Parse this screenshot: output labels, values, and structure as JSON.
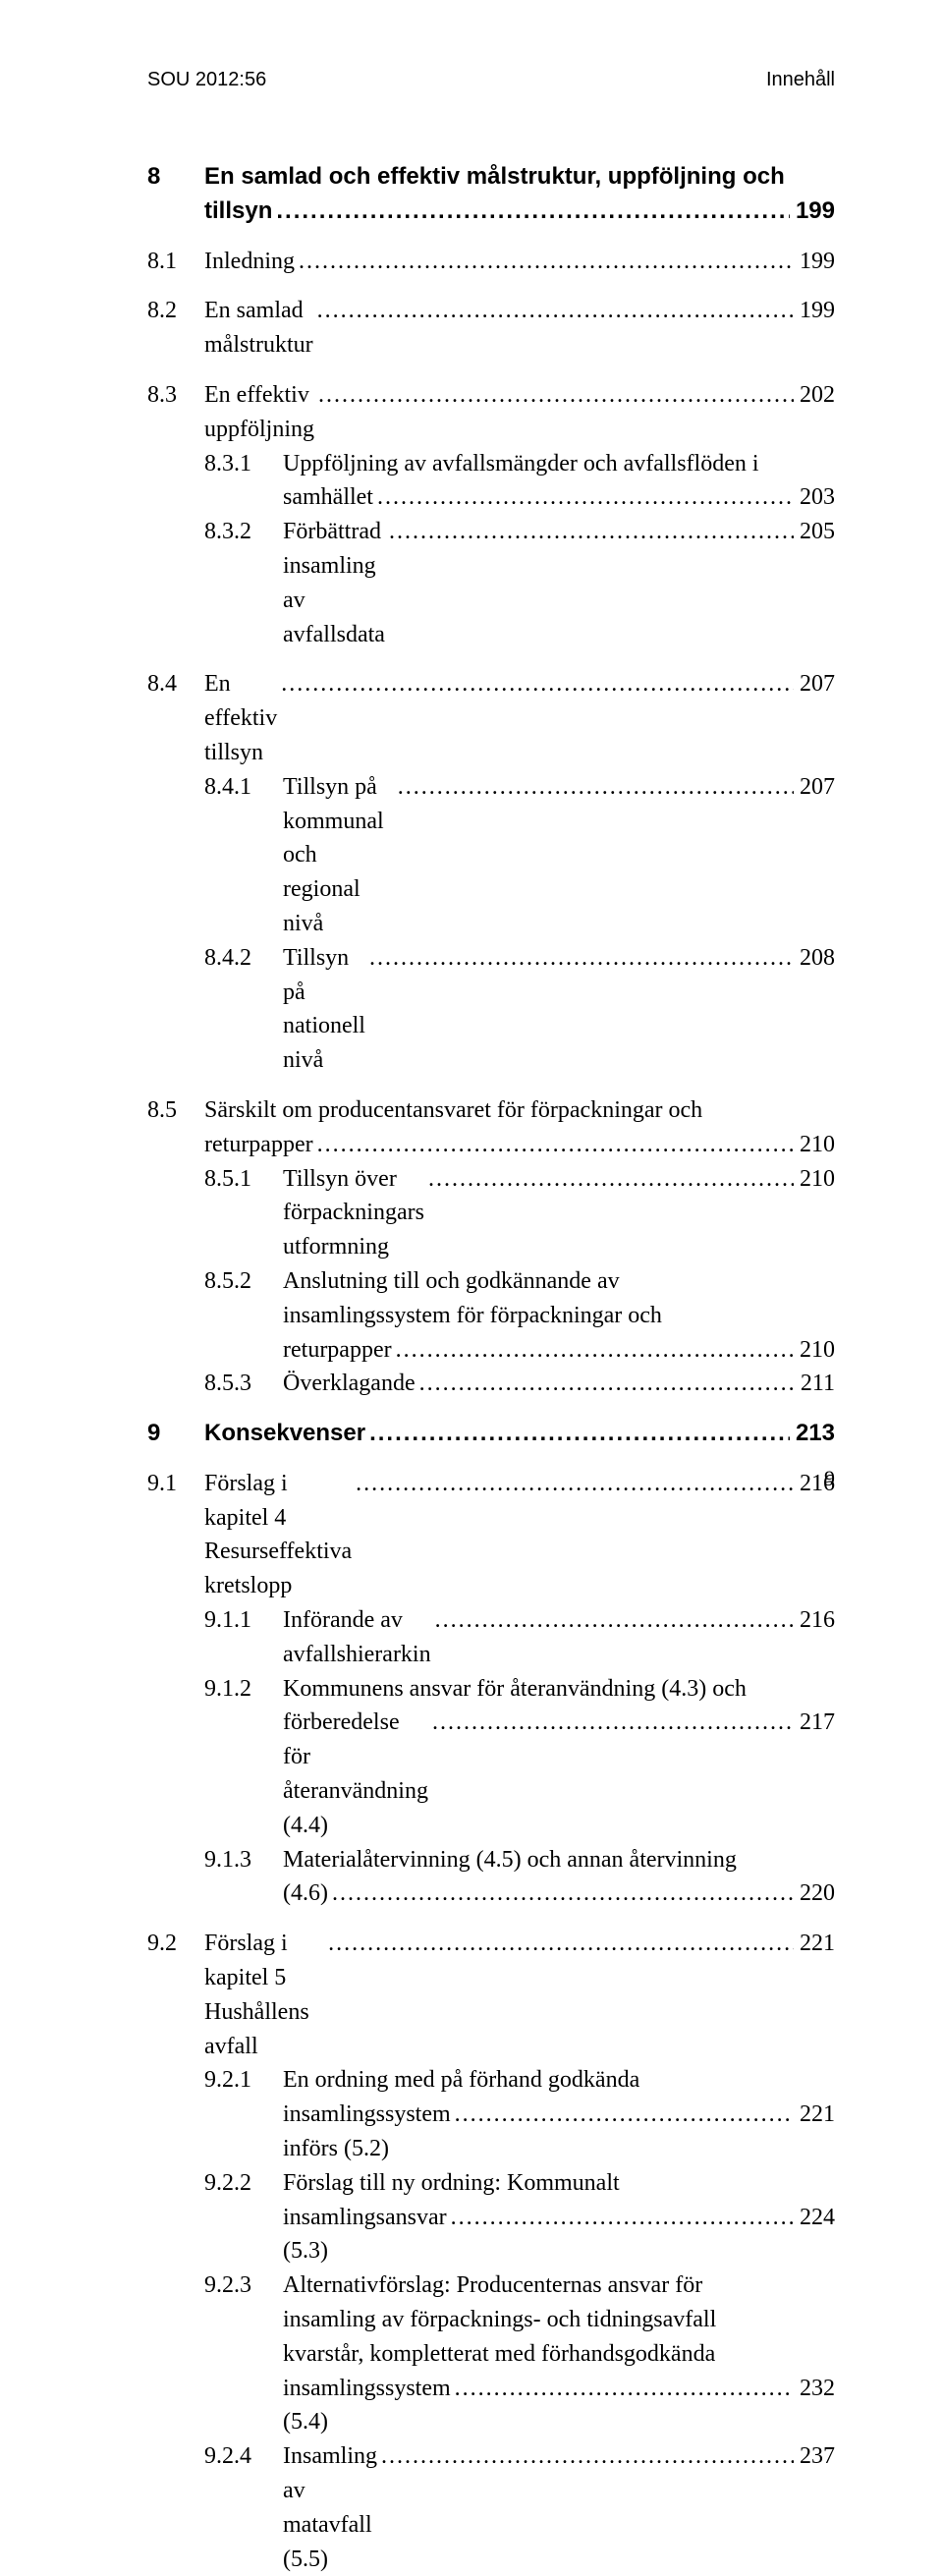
{
  "header": {
    "left": "SOU 2012:56",
    "right": "Innehåll"
  },
  "page_number": "9",
  "toc": {
    "ch8": {
      "num": "8",
      "title_l1": "En samlad och effektiv målstruktur, uppföljning och",
      "title_l2": "tillsyn",
      "page": "199",
      "s81": {
        "num": "8.1",
        "label": "Inledning",
        "page": "199"
      },
      "s82": {
        "num": "8.2",
        "label": "En samlad målstruktur",
        "page": "199"
      },
      "s83": {
        "num": "8.3",
        "label": "En effektiv uppföljning",
        "page": "202",
        "s831": {
          "num": "8.3.1",
          "l1": "Uppföljning av avfallsmängder och avfallsflöden i",
          "l2": "samhället",
          "page": "203"
        },
        "s832": {
          "num": "8.3.2",
          "label": "Förbättrad insamling av avfallsdata",
          "page": "205"
        }
      },
      "s84": {
        "num": "8.4",
        "label": "En effektiv tillsyn",
        "page": "207",
        "s841": {
          "num": "8.4.1",
          "label": "Tillsyn på kommunal och regional nivå",
          "page": "207"
        },
        "s842": {
          "num": "8.4.2",
          "label": "Tillsyn på nationell nivå",
          "page": "208"
        }
      },
      "s85": {
        "num": "8.5",
        "l1": "Särskilt om producentansvaret för förpackningar och",
        "l2": "returpapper",
        "page": "210",
        "s851": {
          "num": "8.5.1",
          "label": "Tillsyn över förpackningars utformning",
          "page": "210"
        },
        "s852": {
          "num": "8.5.2",
          "l1": "Anslutning till och godkännande av",
          "l2": "insamlingssystem för förpackningar och",
          "l3": "returpapper",
          "page": "210"
        },
        "s853": {
          "num": "8.5.3",
          "label": "Överklagande",
          "page": "211"
        }
      }
    },
    "ch9": {
      "num": "9",
      "title": "Konsekvenser",
      "page": "213",
      "s91": {
        "num": "9.1",
        "label": "Förslag i kapitel 4 Resurseffektiva kretslopp",
        "page": "216",
        "s911": {
          "num": "9.1.1",
          "label": "Införande av avfallshierarkin",
          "page": "216"
        },
        "s912": {
          "num": "9.1.2",
          "l1": "Kommunens ansvar för återanvändning (4.3) och",
          "l2": "förberedelse för återanvändning (4.4)",
          "page": "217"
        },
        "s913": {
          "num": "9.1.3",
          "l1": "Materialåtervinning (4.5) och annan återvinning",
          "l2": "(4.6)",
          "page": "220"
        }
      },
      "s92": {
        "num": "9.2",
        "label": "Förslag i kapitel 5 Hushållens avfall",
        "page": "221",
        "s921": {
          "num": "9.2.1",
          "l1": "En ordning med på förhand godkända",
          "l2": "insamlingssystem införs (5.2)",
          "page": "221"
        },
        "s922": {
          "num": "9.2.2",
          "l1": "Förslag till ny ordning: Kommunalt",
          "l2": "insamlingsansvar (5.3)",
          "page": "224"
        },
        "s923": {
          "num": "9.2.3",
          "l1": "Alternativförslag: Producenternas ansvar för",
          "l2": "insamling av förpacknings- och tidningsavfall",
          "l3": "kvarstår, kompletterat med förhandsgodkända",
          "l4": "insamlingssystem (5.4)",
          "page": "232"
        },
        "s924": {
          "num": "9.2.4",
          "label": "Insamling av matavfall (5.5)",
          "page": "237"
        }
      }
    }
  }
}
